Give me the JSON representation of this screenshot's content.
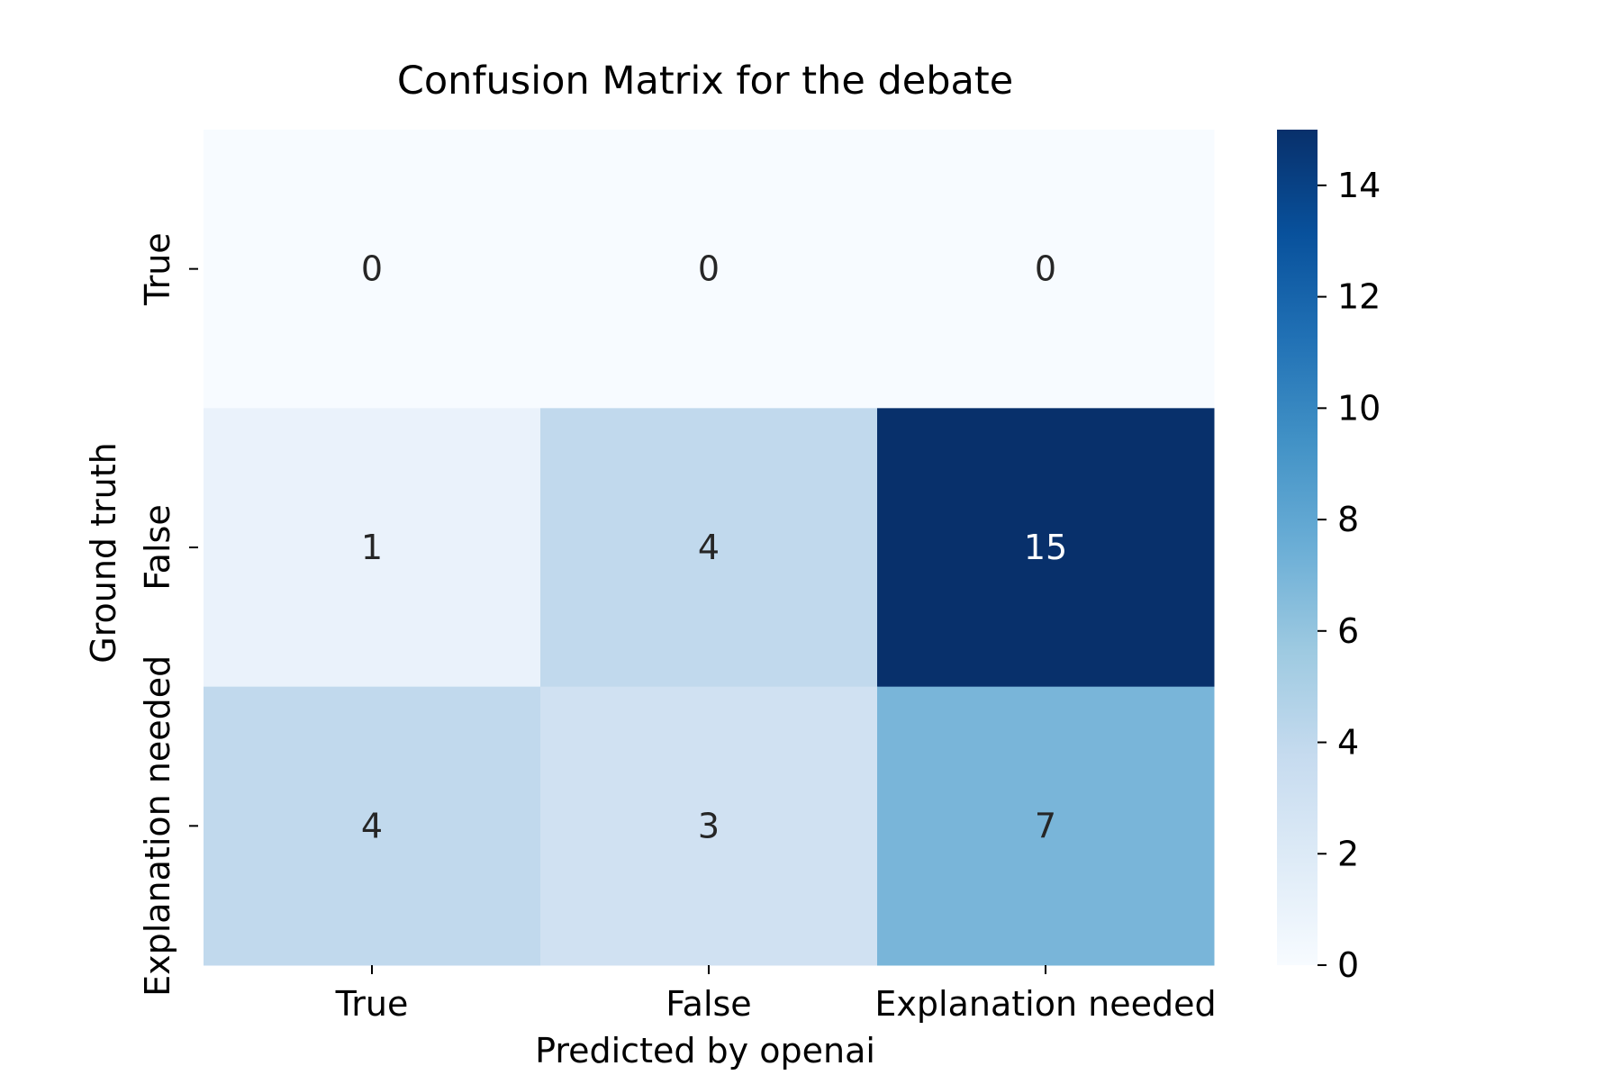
{
  "chart_data": {
    "type": "heatmap",
    "title": "Confusion Matrix for the debate",
    "xlabel": "Predicted by openai",
    "ylabel": "Ground truth",
    "x_categories": [
      "True",
      "False",
      "Explanation needed"
    ],
    "y_categories": [
      "True",
      "False",
      "Explanation needed"
    ],
    "values": [
      [
        0,
        0,
        0
      ],
      [
        1,
        4,
        15
      ],
      [
        4,
        3,
        7
      ]
    ],
    "colorbar": {
      "range": [
        0,
        15
      ],
      "ticks": [
        0,
        2,
        4,
        6,
        8,
        10,
        12,
        14
      ],
      "colormap": "Blues"
    },
    "annotation_colors": {
      "dark_text": "#262626",
      "light_text": "#ffffff"
    }
  }
}
